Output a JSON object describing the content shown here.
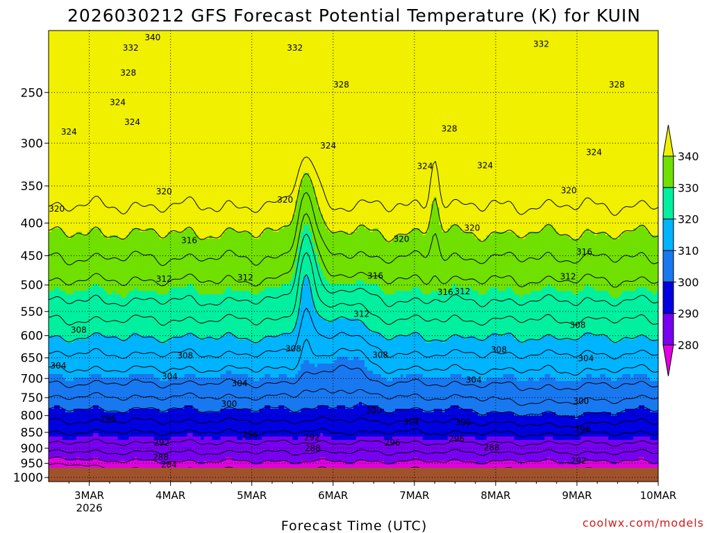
{
  "chart_data": {
    "type": "contour",
    "title": "2026030212 GFS Forecast Potential Temperature (K) for KUIN",
    "xlabel": "Forecast Time (UTC)",
    "credit": "coolwx.com/models",
    "y_ticks": [
      250,
      300,
      350,
      400,
      450,
      500,
      550,
      600,
      650,
      700,
      750,
      800,
      850,
      900,
      950,
      1000
    ],
    "x_ticks": [
      {
        "label": "3MAR",
        "sub": "2026"
      },
      {
        "label": "4MAR",
        "sub": ""
      },
      {
        "label": "5MAR",
        "sub": ""
      },
      {
        "label": "6MAR",
        "sub": ""
      },
      {
        "label": "7MAR",
        "sub": ""
      },
      {
        "label": "8MAR",
        "sub": ""
      },
      {
        "label": "9MAR",
        "sub": ""
      },
      {
        "label": "10MAR",
        "sub": ""
      }
    ],
    "x_start_day": 2.5,
    "x_end_day": 10,
    "ylim": [
      200,
      1015
    ],
    "contour_interval_K": 4,
    "colorbar": {
      "ticks": [
        340,
        330,
        320,
        310,
        300,
        290,
        280
      ],
      "bands": [
        {
          "range": [
            330,
            340
          ],
          "color": "#70e000"
        },
        {
          "range": [
            320,
            330
          ],
          "color": "#00f0a0"
        },
        {
          "range": [
            310,
            320
          ],
          "color": "#00b4ff"
        },
        {
          "range": [
            300,
            310
          ],
          "color": "#1878f0"
        },
        {
          "range": [
            290,
            300
          ],
          "color": "#0000e0"
        },
        {
          "range": [
            280,
            290
          ],
          "color": "#7800f0"
        }
      ],
      "above_color": "#f0f000",
      "below_color": "#e000e0"
    },
    "contour_labels": [
      {
        "v": 340,
        "day": 3.78,
        "p": 205
      },
      {
        "v": 332,
        "day": 3.51,
        "p": 213
      },
      {
        "v": 332,
        "day": 5.53,
        "p": 213
      },
      {
        "v": 332,
        "day": 8.56,
        "p": 210
      },
      {
        "v": 328,
        "day": 3.48,
        "p": 233
      },
      {
        "v": 328,
        "day": 6.1,
        "p": 243
      },
      {
        "v": 328,
        "day": 9.49,
        "p": 243
      },
      {
        "v": 328,
        "day": 7.43,
        "p": 285
      },
      {
        "v": 324,
        "day": 3.35,
        "p": 259
      },
      {
        "v": 324,
        "day": 3.53,
        "p": 278
      },
      {
        "v": 324,
        "day": 2.75,
        "p": 288
      },
      {
        "v": 324,
        "day": 5.94,
        "p": 303
      },
      {
        "v": 324,
        "day": 7.13,
        "p": 326
      },
      {
        "v": 324,
        "day": 7.87,
        "p": 325
      },
      {
        "v": 324,
        "day": 9.21,
        "p": 310
      },
      {
        "v": 320,
        "day": 3.92,
        "p": 357
      },
      {
        "v": 320,
        "day": 2.6,
        "p": 380
      },
      {
        "v": 320,
        "day": 5.41,
        "p": 368
      },
      {
        "v": 320,
        "day": 6.84,
        "p": 424
      },
      {
        "v": 320,
        "day": 7.71,
        "p": 407
      },
      {
        "v": 320,
        "day": 8.9,
        "p": 356
      },
      {
        "v": 316,
        "day": 4.23,
        "p": 426
      },
      {
        "v": 316,
        "day": 6.52,
        "p": 484
      },
      {
        "v": 316,
        "day": 7.38,
        "p": 513
      },
      {
        "v": 316,
        "day": 9.09,
        "p": 444
      },
      {
        "v": 312,
        "day": 3.92,
        "p": 489
      },
      {
        "v": 312,
        "day": 4.92,
        "p": 487
      },
      {
        "v": 312,
        "day": 6.35,
        "p": 555
      },
      {
        "v": 312,
        "day": 7.59,
        "p": 512
      },
      {
        "v": 312,
        "day": 8.89,
        "p": 485
      },
      {
        "v": 308,
        "day": 2.87,
        "p": 588
      },
      {
        "v": 308,
        "day": 4.18,
        "p": 645
      },
      {
        "v": 308,
        "day": 5.51,
        "p": 629
      },
      {
        "v": 308,
        "day": 6.58,
        "p": 643
      },
      {
        "v": 308,
        "day": 8.04,
        "p": 631
      },
      {
        "v": 308,
        "day": 9.01,
        "p": 578
      },
      {
        "v": 304,
        "day": 2.62,
        "p": 669
      },
      {
        "v": 304,
        "day": 3.99,
        "p": 695
      },
      {
        "v": 304,
        "day": 4.85,
        "p": 713
      },
      {
        "v": 304,
        "day": 7.73,
        "p": 704
      },
      {
        "v": 304,
        "day": 9.11,
        "p": 651
      },
      {
        "v": 300,
        "day": 4.72,
        "p": 767
      },
      {
        "v": 300,
        "day": 6.5,
        "p": 787
      },
      {
        "v": 300,
        "day": 7.6,
        "p": 820
      },
      {
        "v": 300,
        "day": 9.05,
        "p": 760
      },
      {
        "v": 304,
        "day": 6.96,
        "p": 819
      },
      {
        "v": 296,
        "day": 3.23,
        "p": 810
      },
      {
        "v": 296,
        "day": 4.98,
        "p": 857
      },
      {
        "v": 296,
        "day": 6.73,
        "p": 882
      },
      {
        "v": 296,
        "day": 7.52,
        "p": 870
      },
      {
        "v": 296,
        "day": 9.07,
        "p": 842
      },
      {
        "v": 292,
        "day": 3.89,
        "p": 883
      },
      {
        "v": 292,
        "day": 5.74,
        "p": 866
      },
      {
        "v": 292,
        "day": 9.02,
        "p": 942
      },
      {
        "v": 288,
        "day": 3.88,
        "p": 930
      },
      {
        "v": 288,
        "day": 5.75,
        "p": 900
      },
      {
        "v": 288,
        "day": 7.95,
        "p": 898
      },
      {
        "v": 284,
        "day": 3.98,
        "p": 955
      }
    ]
  }
}
